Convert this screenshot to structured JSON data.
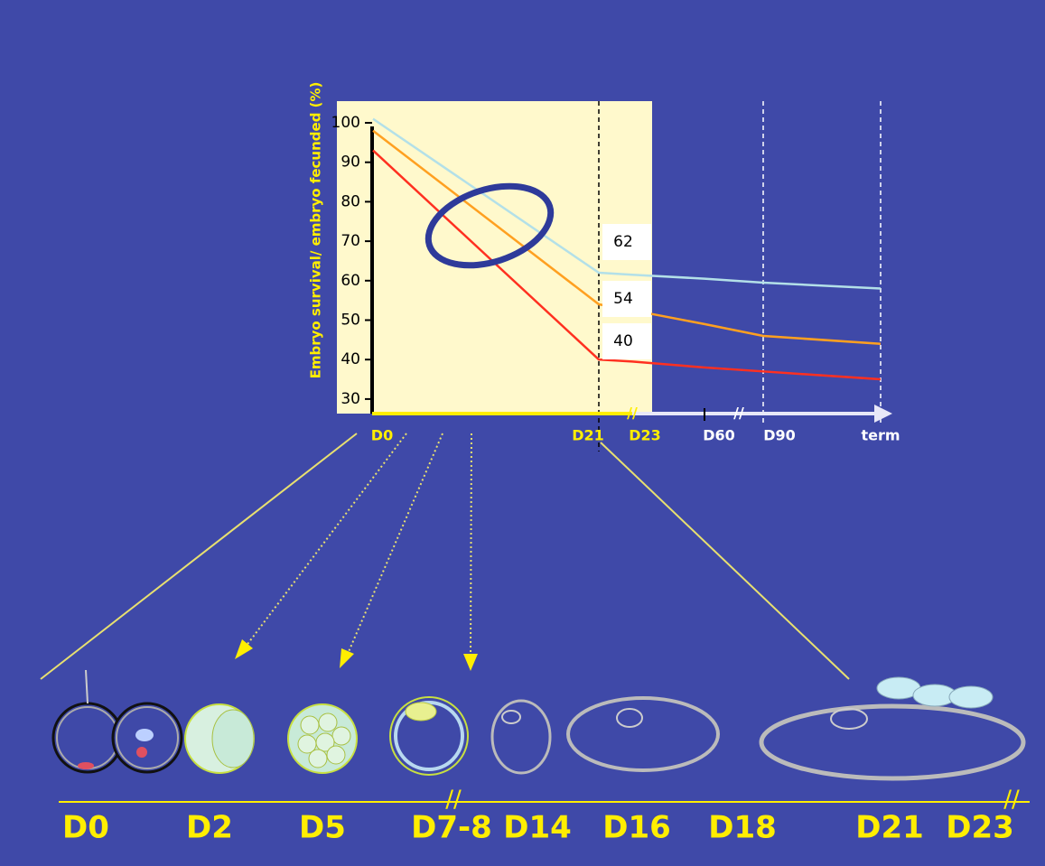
{
  "chart_data": {
    "type": "line",
    "y_label": "Embryo survival/ embryo fecunded (%)",
    "categories": [
      "D0",
      "D21",
      "D23",
      "D60",
      "D90",
      "term"
    ],
    "ylim": [
      26,
      100
    ],
    "yticks": [
      30,
      40,
      50,
      60,
      70,
      80,
      90,
      100
    ],
    "series": [
      {
        "color": "#b3e0e8",
        "values": [
          101,
          62,
          61.5,
          60.5,
          59.5,
          58
        ]
      },
      {
        "color": "#ffa020",
        "values": [
          98,
          54,
          52.5,
          49,
          46,
          44
        ]
      },
      {
        "color": "#ff3020",
        "values": [
          93,
          40,
          39.5,
          38,
          37,
          35
        ]
      }
    ]
  },
  "timeline": {
    "labels": [
      "D0",
      "D2",
      "D5",
      "D7-8",
      "D14",
      "D16",
      "D18",
      "D21",
      "D23"
    ]
  }
}
